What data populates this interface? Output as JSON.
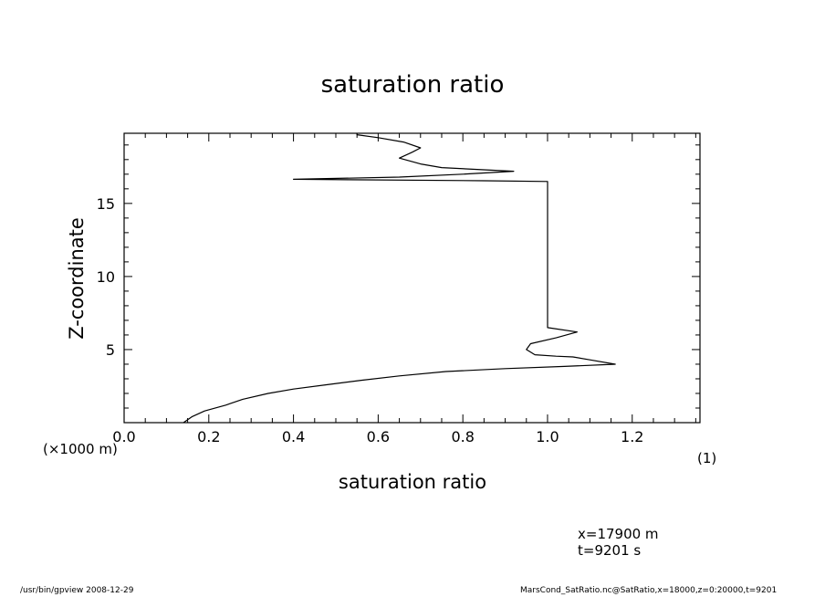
{
  "page": {
    "title": "saturation ratio",
    "x_unit": "(×1000 m)",
    "y_unit": "(1)",
    "info_lines": [
      "x=17900  m",
      "t=9201  s"
    ],
    "footer_left": "/usr/bin/gpview   2008-12-29",
    "footer_right": "MarsCond_SatRatio.nc@SatRatio,x=18000,z=0:20000,t=9201"
  },
  "chart_data": {
    "type": "line",
    "title": "saturation ratio",
    "xlabel": "saturation ratio",
    "ylabel": "Z-coordinate",
    "xlim": [
      0.0,
      1.36
    ],
    "ylim": [
      0,
      19.8
    ],
    "x_ticks": [
      0.0,
      0.2,
      0.4,
      0.6,
      0.8,
      1.0,
      1.2
    ],
    "x_tick_labels": [
      "0.0",
      "0.2",
      "0.4",
      "0.6",
      "0.8",
      "1.0",
      "1.2"
    ],
    "y_ticks": [
      5,
      10,
      15
    ],
    "y_tick_labels": [
      "5",
      "10",
      "15"
    ],
    "grid": false,
    "series": [
      {
        "color": "#000000",
        "points": [
          [
            0.14,
            0.0
          ],
          [
            0.16,
            0.4
          ],
          [
            0.19,
            0.8
          ],
          [
            0.24,
            1.2
          ],
          [
            0.28,
            1.6
          ],
          [
            0.34,
            2.0
          ],
          [
            0.4,
            2.3
          ],
          [
            0.48,
            2.6
          ],
          [
            0.56,
            2.9
          ],
          [
            0.65,
            3.2
          ],
          [
            0.76,
            3.5
          ],
          [
            0.9,
            3.7
          ],
          [
            1.04,
            3.85
          ],
          [
            1.16,
            4.0
          ],
          [
            1.1,
            4.3
          ],
          [
            1.06,
            4.5
          ],
          [
            1.02,
            4.55
          ],
          [
            0.97,
            4.65
          ],
          [
            0.95,
            5.0
          ],
          [
            0.96,
            5.4
          ],
          [
            1.02,
            5.8
          ],
          [
            1.07,
            6.2
          ],
          [
            1.0,
            6.5
          ],
          [
            1.0,
            8.0
          ],
          [
            1.0,
            10.0
          ],
          [
            1.0,
            12.0
          ],
          [
            1.0,
            14.0
          ],
          [
            1.0,
            16.0
          ],
          [
            1.0,
            16.5
          ],
          [
            0.85,
            16.55
          ],
          [
            0.4,
            16.65
          ],
          [
            0.65,
            16.8
          ],
          [
            0.8,
            17.0
          ],
          [
            0.92,
            17.2
          ],
          [
            0.85,
            17.3
          ],
          [
            0.75,
            17.45
          ],
          [
            0.7,
            17.7
          ],
          [
            0.65,
            18.1
          ],
          [
            0.68,
            18.5
          ],
          [
            0.7,
            18.8
          ],
          [
            0.66,
            19.2
          ],
          [
            0.6,
            19.5
          ],
          [
            0.55,
            19.7
          ],
          [
            0.55,
            19.8
          ]
        ]
      }
    ]
  }
}
